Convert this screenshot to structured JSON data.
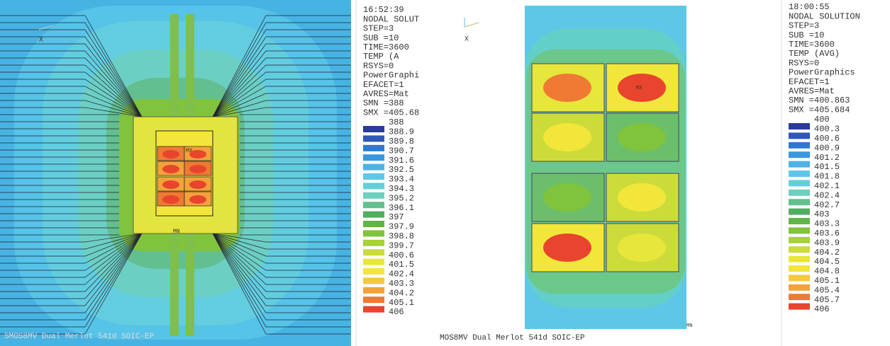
{
  "panels": [
    {
      "info": [
        "16:52:39",
        "NODAL SOLUT",
        "STEP=3",
        "SUB =10",
        "TIME=3600",
        "TEMP       (A",
        "RSYS=0",
        "PowerGraphi",
        "EFACET=1",
        "AVRES=Mat",
        "SMN =388",
        "SMX =405.68"
      ],
      "legend": [
        "388",
        "388.9",
        "389.8",
        "390.7",
        "391.6",
        "392.5",
        "393.4",
        "394.3",
        "395.2",
        "396.1",
        "397",
        "397.9",
        "398.8",
        "399.7",
        "400.6",
        "401.5",
        "402.4",
        "403.3",
        "404.2",
        "405.1",
        "406"
      ],
      "axis_label": "X",
      "max_marker": "MX",
      "min_marker": "MN",
      "footer": "SMOS8MV Dual Merlot 541d SOIC-EP"
    },
    {
      "info": [
        "18:00:55",
        "NODAL SOLUTION",
        "STEP=3",
        "SUB =10",
        "TIME=3600",
        "TEMP       (AVG)",
        "RSYS=0",
        "PowerGraphics",
        "EFACET=1",
        "AVRES=Mat",
        "SMN =400.863",
        "SMX =405.684"
      ],
      "legend": [
        "400",
        "400.3",
        "400.6",
        "400.9",
        "401.2",
        "401.5",
        "401.8",
        "402.1",
        "402.4",
        "402.7",
        "403",
        "403.3",
        "403.6",
        "403.9",
        "404.2",
        "404.5",
        "404.8",
        "405.1",
        "405.4",
        "405.7",
        "406"
      ],
      "axis_label": "X",
      "max_marker": "MX",
      "min_marker": "MN",
      "footer": "MOS8MV Dual Merlot 541d SOIC-EP"
    }
  ]
}
